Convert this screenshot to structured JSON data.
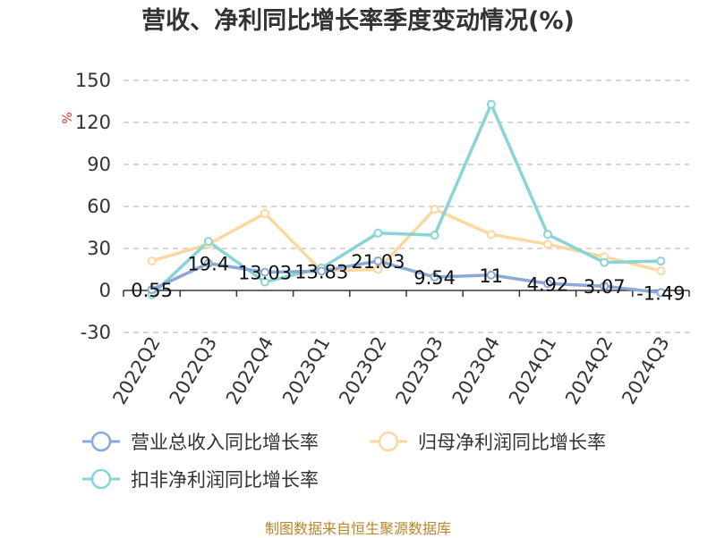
{
  "chart_data": {
    "type": "line",
    "title": "营收、净利同比增长率季度变动情况(%)",
    "ylabel": "%",
    "categories": [
      "2022Q2",
      "2022Q3",
      "2022Q4",
      "2023Q1",
      "2023Q2",
      "2023Q3",
      "2023Q4",
      "2024Q1",
      "2024Q2",
      "2024Q3"
    ],
    "ylim": [
      -30,
      150
    ],
    "yticks": [
      -30,
      0,
      30,
      60,
      90,
      120,
      150
    ],
    "grid": true,
    "legend_position": "bottom",
    "series": [
      {
        "name": "营业总收入同比增长率",
        "color": "#8aa8d8",
        "values": [
          0.55,
          19.4,
          13.03,
          13.83,
          21.03,
          9.54,
          11,
          4.92,
          3.07,
          -1.49
        ],
        "labels": [
          "0.55",
          "19.4",
          "13.03",
          "13.83",
          "21.03",
          "9.54",
          "11",
          "4.92",
          "3.07",
          "-1.49"
        ]
      },
      {
        "name": "归母净利润同比增长率",
        "color": "#fad8a0",
        "values": [
          21,
          33,
          55,
          14,
          15,
          58,
          40,
          33,
          24,
          14
        ]
      },
      {
        "name": "扣非净利润同比增长率",
        "color": "#88d4d6",
        "values": [
          -3,
          35,
          6,
          16,
          41,
          39.5,
          133,
          40,
          20,
          21
        ]
      }
    ]
  },
  "footer": {
    "source": "制图数据来自恒生聚源数据库"
  }
}
